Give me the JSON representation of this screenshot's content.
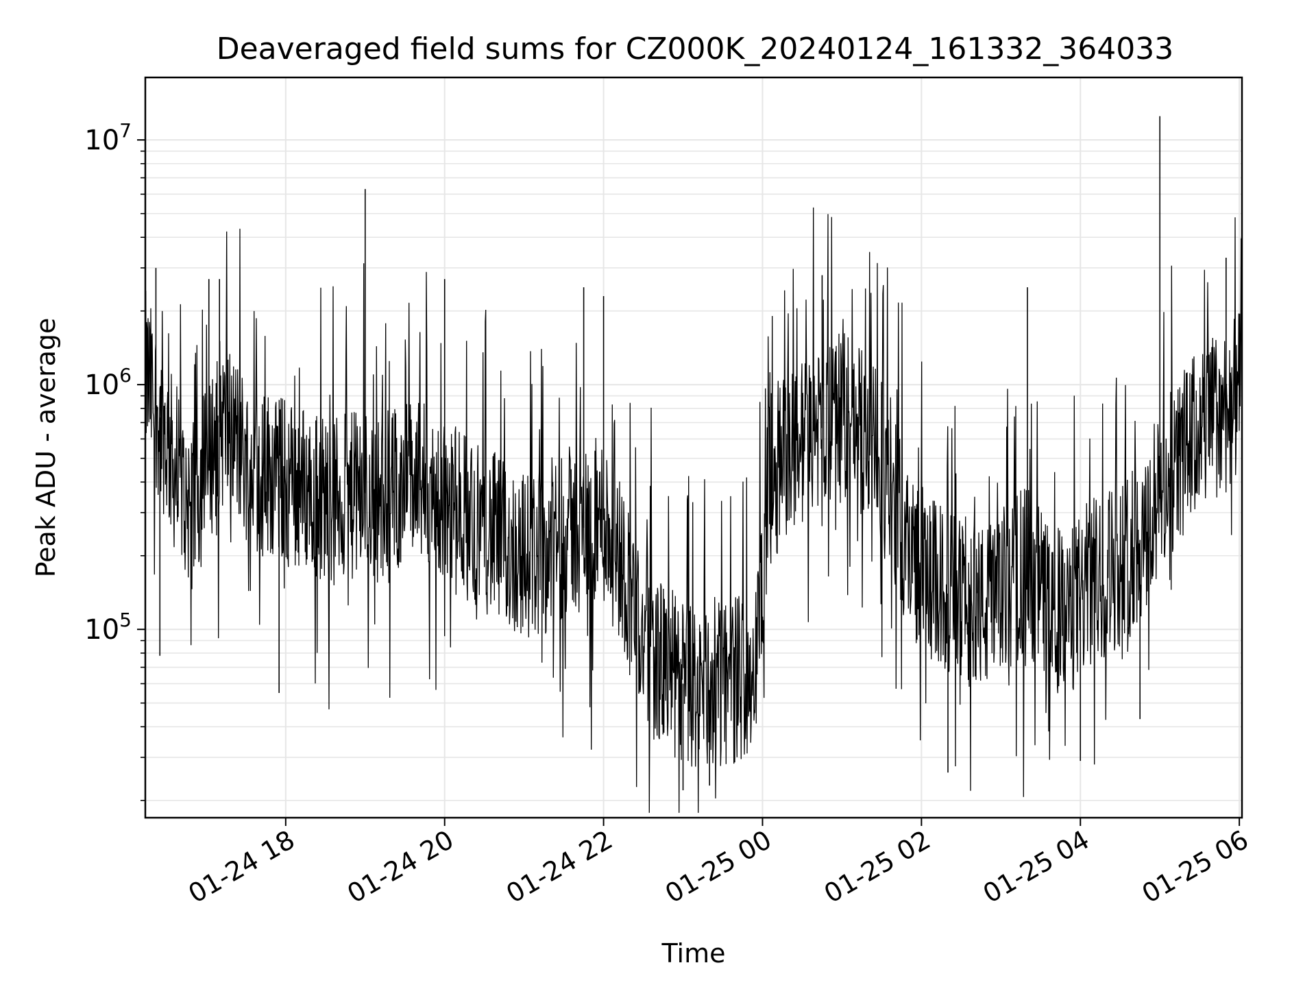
{
  "chart_data": {
    "type": "line",
    "title": "Deaveraged field sums for CZ000K_20240124_161332_364033",
    "xlabel": "Time",
    "ylabel": "Peak ADU - average",
    "y_scale": "log",
    "ylim": [
      17000,
      18000000
    ],
    "xlim": [
      "2024-01-24 16:14",
      "2024-01-25 06:02"
    ],
    "x_ticks": [
      {
        "value": "2024-01-24 18:00",
        "label": "01-24 18"
      },
      {
        "value": "2024-01-24 20:00",
        "label": "01-24 20"
      },
      {
        "value": "2024-01-24 22:00",
        "label": "01-24 22"
      },
      {
        "value": "2024-01-25 00:00",
        "label": "01-25 00"
      },
      {
        "value": "2024-01-25 02:00",
        "label": "01-25 02"
      },
      {
        "value": "2024-01-25 04:00",
        "label": "01-25 04"
      },
      {
        "value": "2024-01-25 06:00",
        "label": "01-25 06"
      }
    ],
    "y_ticks": [
      {
        "value": 100000,
        "base": "10",
        "exp": "5"
      },
      {
        "value": 1000000,
        "base": "10",
        "exp": "6"
      },
      {
        "value": 10000000,
        "base": "10",
        "exp": "7"
      }
    ],
    "grid": true,
    "line_color": "#000000",
    "series": [
      {
        "x": [
          "2024-01-24 16:14",
          "2024-01-24 16:20",
          "2024-01-24 16:30",
          "2024-01-24 16:40",
          "2024-01-24 16:50",
          "2024-01-24 17:00",
          "2024-01-24 17:10",
          "2024-01-24 17:20",
          "2024-01-24 17:30",
          "2024-01-24 17:40",
          "2024-01-24 17:50",
          "2024-01-24 18:00",
          "2024-01-24 18:15",
          "2024-01-24 18:30",
          "2024-01-24 18:45",
          "2024-01-24 19:00",
          "2024-01-24 19:15",
          "2024-01-24 19:30",
          "2024-01-24 19:45",
          "2024-01-24 20:00",
          "2024-01-24 20:15",
          "2024-01-24 20:30",
          "2024-01-24 20:45",
          "2024-01-24 21:00",
          "2024-01-24 21:15",
          "2024-01-24 21:30",
          "2024-01-24 21:45",
          "2024-01-24 22:00",
          "2024-01-24 22:15",
          "2024-01-24 22:30",
          "2024-01-24 22:45",
          "2024-01-24 23:00",
          "2024-01-24 23:15",
          "2024-01-24 23:30",
          "2024-01-24 23:45",
          "2024-01-24 23:55",
          "2024-01-25 00:05",
          "2024-01-25 00:20",
          "2024-01-25 00:35",
          "2024-01-25 00:50",
          "2024-01-25 01:05",
          "2024-01-25 01:20",
          "2024-01-25 01:35",
          "2024-01-25 01:50",
          "2024-01-25 02:05",
          "2024-01-25 02:20",
          "2024-01-25 02:35",
          "2024-01-25 02:50",
          "2024-01-25 03:05",
          "2024-01-25 03:20",
          "2024-01-25 03:35",
          "2024-01-25 03:50",
          "2024-01-25 04:05",
          "2024-01-25 04:20",
          "2024-01-25 04:35",
          "2024-01-25 04:50",
          "2024-01-25 05:05",
          "2024-01-25 05:20",
          "2024-01-25 05:35",
          "2024-01-25 05:50",
          "2024-01-25 06:02"
        ],
        "y": [
          1100000,
          900000,
          600000,
          380000,
          320000,
          450000,
          700000,
          650000,
          500000,
          420000,
          450000,
          400000,
          380000,
          350000,
          340000,
          360000,
          330000,
          420000,
          380000,
          320000,
          300000,
          260000,
          220000,
          200000,
          210000,
          250000,
          260000,
          280000,
          180000,
          90000,
          70000,
          60000,
          55000,
          60000,
          65000,
          70000,
          400000,
          550000,
          600000,
          700000,
          750000,
          600000,
          400000,
          220000,
          160000,
          140000,
          130000,
          120000,
          150000,
          180000,
          130000,
          110000,
          150000,
          170000,
          200000,
          250000,
          400000,
          550000,
          700000,
          800000,
          900000
        ]
      }
    ],
    "spikes": [
      {
        "x": "2024-01-24 16:22",
        "y": 3000000
      },
      {
        "x": "2024-01-24 17:02",
        "y": 2700000
      },
      {
        "x": "2024-01-24 17:10",
        "y": 2700000
      },
      {
        "x": "2024-01-24 19:00",
        "y": 6300000
      },
      {
        "x": "2024-01-24 20:00",
        "y": 2700000
      },
      {
        "x": "2024-01-24 21:45",
        "y": 2500000
      },
      {
        "x": "2024-01-24 22:00",
        "y": 2300000
      },
      {
        "x": "2024-01-25 00:45",
        "y": 2800000
      },
      {
        "x": "2024-01-25 03:20",
        "y": 2500000
      },
      {
        "x": "2024-01-25 05:00",
        "y": 12500000
      },
      {
        "x": "2024-01-25 05:50",
        "y": 3300000
      }
    ],
    "dips": [
      {
        "x": "2024-01-24 16:25",
        "y": 78000
      },
      {
        "x": "2024-01-24 17:55",
        "y": 55000
      },
      {
        "x": "2024-01-24 23:00",
        "y": 22000
      },
      {
        "x": "2024-01-24 23:20",
        "y": 23000
      },
      {
        "x": "2024-01-25 02:20",
        "y": 26000
      },
      {
        "x": "2024-01-25 04:00",
        "y": 29000
      },
      {
        "x": "2024-01-25 04:45",
        "y": 43000
      }
    ]
  }
}
